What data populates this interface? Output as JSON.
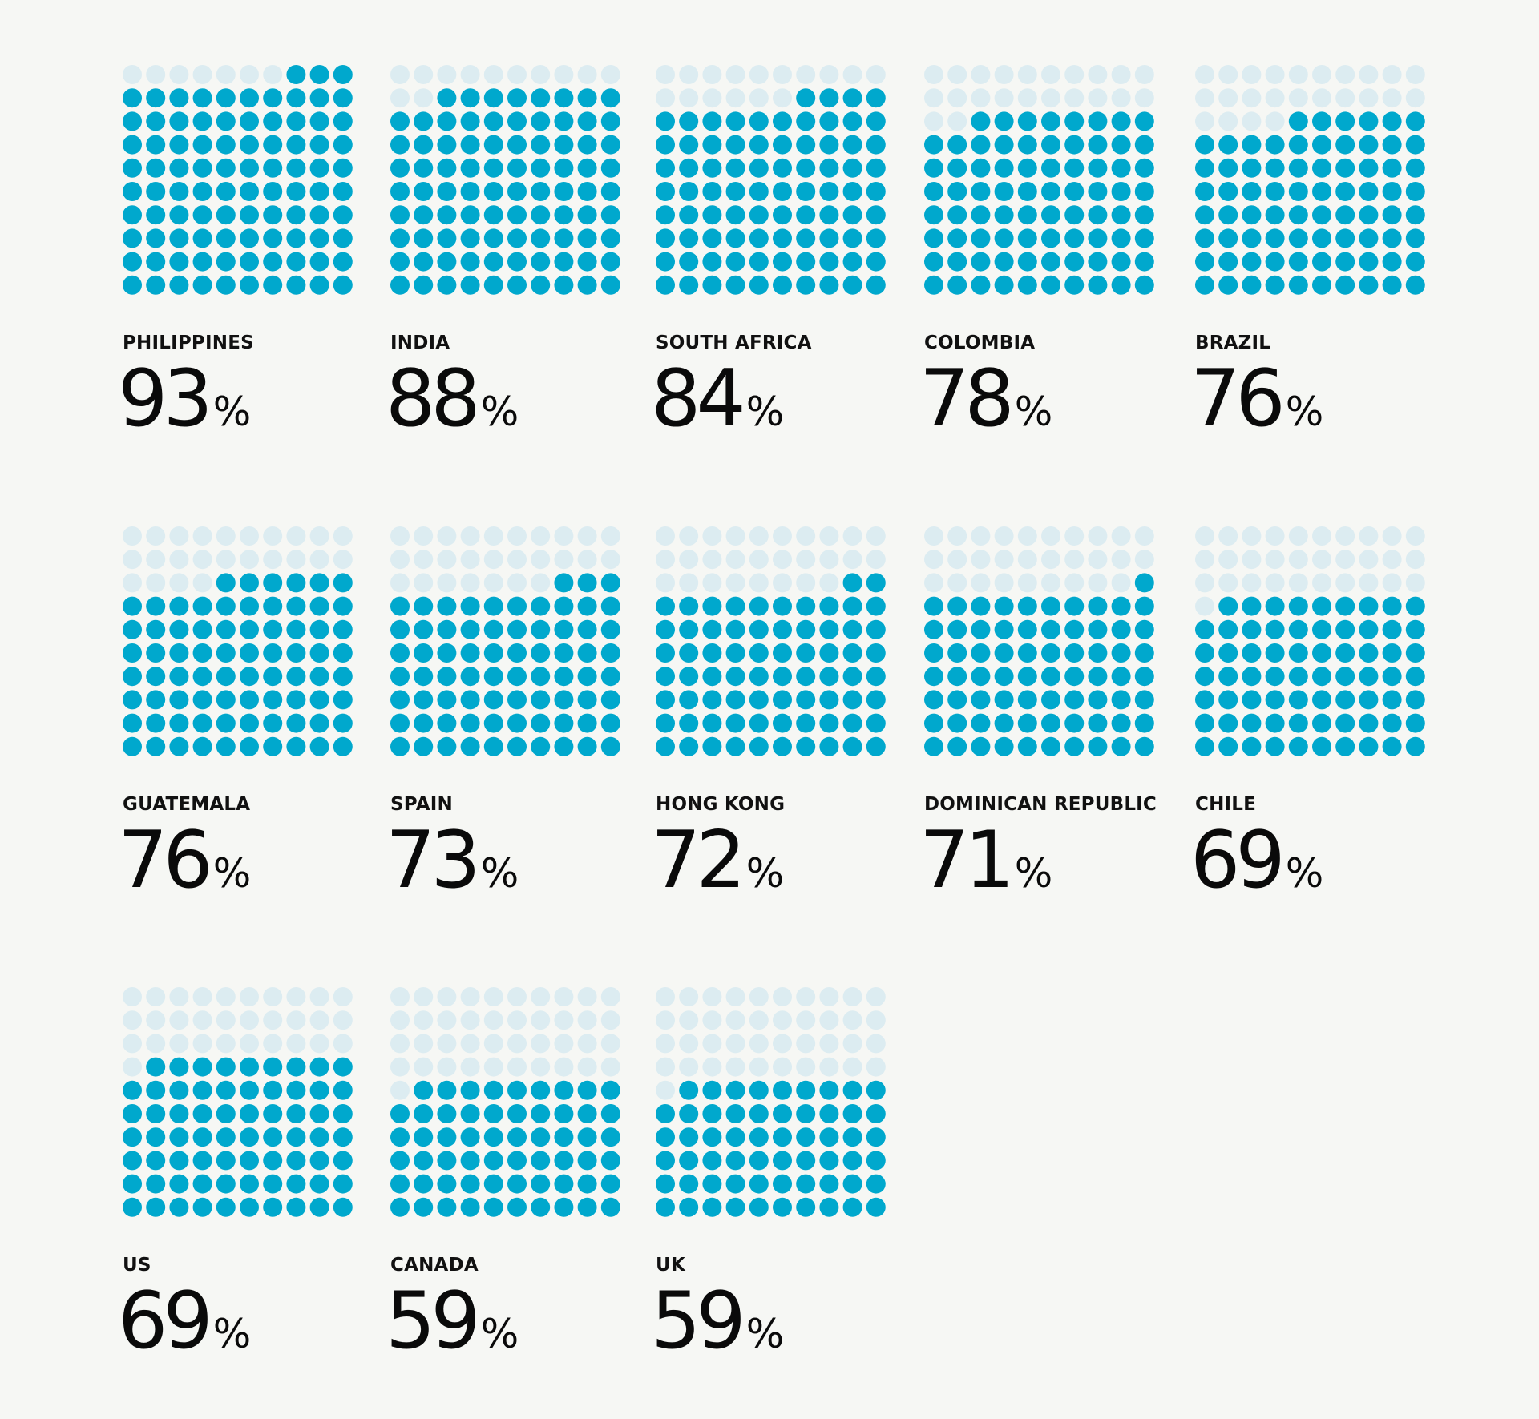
{
  "chart_data": {
    "type": "waffle",
    "grid": "10x10",
    "unit": "%",
    "colors": {
      "filled": "#00a8cd",
      "empty": "#dcecf1",
      "text": "#0a0a0a",
      "background": "#f6f7f4"
    },
    "categories": [
      "PHILIPPINES",
      "INDIA",
      "SOUTH AFRICA",
      "COLOMBIA",
      "BRAZIL",
      "GUATEMALA",
      "SPAIN",
      "HONG KONG",
      "DOMINICAN REPUBLIC",
      "CHILE",
      "US",
      "CANADA",
      "UK"
    ],
    "values": [
      93,
      88,
      84,
      78,
      76,
      76,
      73,
      72,
      71,
      69,
      69,
      59,
      59
    ]
  }
}
